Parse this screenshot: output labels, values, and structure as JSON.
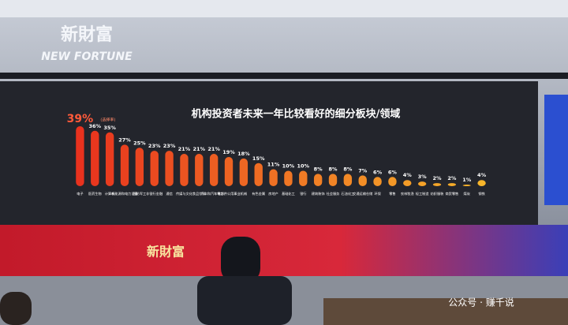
{
  "scene": {
    "wall_logo": "新財富",
    "wall_logo_en": "NEW FORTUNE",
    "banner_logo": "新財富",
    "watermark": "公众号 · 赚千说"
  },
  "chart_data": {
    "type": "bar",
    "title": "机构投资者未来一年比较看好的细分板块/领域",
    "note": "(选择率)",
    "categories": [
      "电子",
      "医药生物",
      "计算机",
      "新能源和电力设备",
      "国防军工",
      "非银行金融",
      "通信",
      "传媒与文化",
      "食品饮料",
      "汽车和汽车零部件",
      "电力、公用事业",
      "机械",
      "有色金属",
      "房地产",
      "基础化工",
      "银行",
      "建筑装饰",
      "社会服务",
      "石油化工",
      "交通运输仓储",
      "环保",
      "零售",
      "农林牧渔",
      "轻工制造",
      "纺织服装",
      "商贸零售",
      "煤炭",
      "钢铁"
    ],
    "values": [
      39,
      36,
      35,
      27,
      25,
      23,
      23,
      21,
      21,
      21,
      19,
      18,
      15,
      11,
      10,
      10,
      8,
      8,
      8,
      7,
      6,
      6,
      4,
      3,
      2,
      2,
      1,
      4
    ],
    "value_labels": [
      "39%",
      "36%",
      "35%",
      "27%",
      "25%",
      "23%",
      "23%",
      "21%",
      "21%",
      "21%",
      "19%",
      "18%",
      "15%",
      "11%",
      "10%",
      "10%",
      "8%",
      "8%",
      "8%",
      "7%",
      "6%",
      "6%",
      "4%",
      "3%",
      "2%",
      "2%",
      "1%",
      "4%"
    ],
    "ylim": [
      0,
      40
    ],
    "gradient": [
      "#e8321e",
      "#f7b52a"
    ]
  }
}
